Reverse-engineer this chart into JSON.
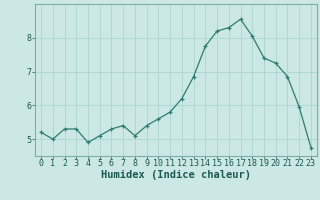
{
  "x": [
    0,
    1,
    2,
    3,
    4,
    5,
    6,
    7,
    8,
    9,
    10,
    11,
    12,
    13,
    14,
    15,
    16,
    17,
    18,
    19,
    20,
    21,
    22,
    23
  ],
  "y": [
    5.2,
    5.0,
    5.3,
    5.3,
    4.9,
    5.1,
    5.3,
    5.4,
    5.1,
    5.4,
    5.6,
    5.8,
    6.2,
    6.85,
    7.75,
    8.2,
    8.3,
    8.55,
    8.05,
    7.4,
    7.25,
    6.85,
    5.95,
    4.75
  ],
  "xlabel": "Humidex (Indice chaleur)",
  "xlim": [
    -0.5,
    23.5
  ],
  "ylim": [
    4.5,
    9.0
  ],
  "yticks": [
    5,
    6,
    7,
    8
  ],
  "xticks": [
    0,
    1,
    2,
    3,
    4,
    5,
    6,
    7,
    8,
    9,
    10,
    11,
    12,
    13,
    14,
    15,
    16,
    17,
    18,
    19,
    20,
    21,
    22,
    23
  ],
  "line_color": "#2e7d6e",
  "marker_color": "#2e7d6e",
  "bg_color": "#cce8e4",
  "grid_color": "#b0d8d2",
  "axes_color": "#7ab0a8",
  "text_color": "#1a5a50",
  "tick_fontsize": 6.0,
  "label_fontsize": 7.5
}
